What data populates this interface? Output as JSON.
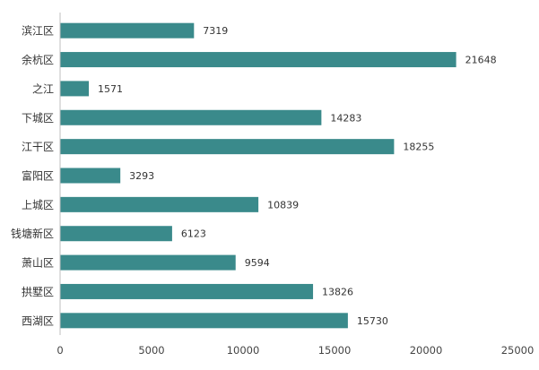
{
  "chart_data": {
    "type": "bar",
    "orientation": "horizontal",
    "categories": [
      "滨江区",
      "余杭区",
      "之江",
      "下城区",
      "江干区",
      "富阳区",
      "上城区",
      "钱塘新区",
      "萧山区",
      "拱墅区",
      "西湖区"
    ],
    "values": [
      7319,
      21648,
      1571,
      14283,
      18255,
      3293,
      10839,
      6123,
      9594,
      13826,
      15730
    ],
    "value_labels": [
      "7319",
      "21648",
      "1571",
      "14283",
      "18255",
      "3293",
      "10839",
      "6123",
      "9594",
      "13826",
      "15730"
    ],
    "xlim": [
      0,
      25000
    ],
    "xticks": [
      0,
      5000,
      10000,
      15000,
      20000,
      25000
    ],
    "xtick_labels": [
      "0",
      "5000",
      "10000",
      "15000",
      "20000",
      "25000"
    ],
    "title": "",
    "xlabel": "",
    "ylabel": "",
    "grid": false,
    "legend": "none",
    "bar_color": "#3a8a8b",
    "axis_color": "#bfbfbf"
  }
}
